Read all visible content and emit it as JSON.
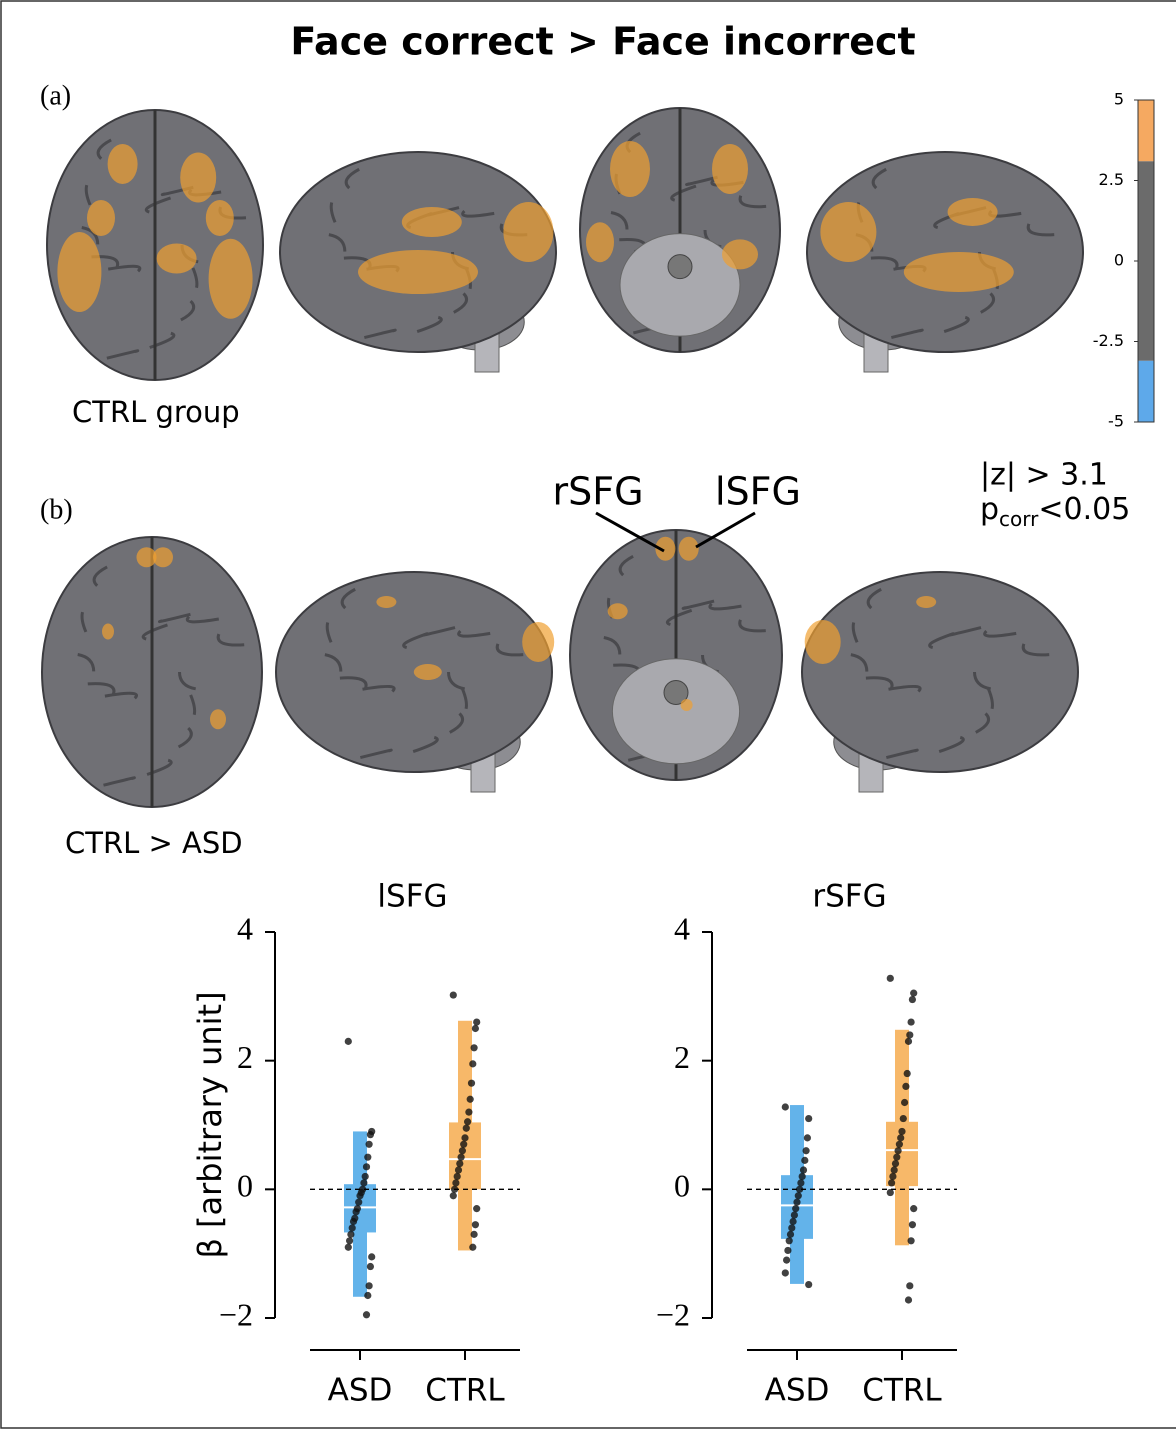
{
  "title": "Face correct > Face incorrect",
  "panel_a": {
    "label": "(a)",
    "caption": "CTRL group"
  },
  "panel_b": {
    "label": "(b)",
    "caption": "CTRL > ASD",
    "annotations": [
      "rSFG",
      "lSFG"
    ]
  },
  "colorbar": {
    "lim": [
      -5,
      5
    ],
    "ticks": [
      5,
      2.5,
      0,
      -2.5,
      -5
    ],
    "threshold": 3.1,
    "pos_color": "#f5a961",
    "neg_color": "#5ea9ea",
    "mid_color": "#6b6b6b"
  },
  "threshold_z": "|z| > 3.1",
  "threshold_p": {
    "base": "p",
    "sub": "corr",
    "rest": "<0.05"
  },
  "chart_data": [
    {
      "type": "box",
      "title": "lSFG",
      "ylabel": "β [arbitrary unit]",
      "categories": [
        "ASD",
        "CTRL"
      ],
      "colors": [
        "#63b3ea",
        "#f7b869"
      ],
      "ylim": [
        -2,
        4
      ],
      "yticks": [
        4,
        2,
        0,
        {
          "value": -2,
          "label": "−2"
        }
      ],
      "hline": 0,
      "boxes": [
        {
          "q1": -0.67,
          "median": -0.28,
          "q3": 0.08,
          "whisker_low": -1.67,
          "whisker_high": 0.9,
          "points": [
            2.3,
            0.9,
            0.85,
            0.7,
            0.5,
            0.35,
            0.2,
            0.1,
            0.0,
            -0.05,
            -0.1,
            -0.2,
            -0.3,
            -0.35,
            -0.45,
            -0.5,
            -0.6,
            -0.7,
            -0.8,
            -0.9,
            -1.05,
            -1.2,
            -1.5,
            -1.65,
            -1.95
          ]
        },
        {
          "q1": 0.0,
          "median": 0.47,
          "q3": 1.04,
          "whisker_low": -0.95,
          "whisker_high": 2.62,
          "points": [
            3.02,
            2.6,
            2.5,
            2.2,
            1.95,
            1.65,
            1.4,
            1.2,
            1.05,
            0.95,
            0.8,
            0.7,
            0.6,
            0.5,
            0.4,
            0.3,
            0.2,
            0.1,
            0.0,
            -0.1,
            -0.3,
            -0.55,
            -0.7,
            -0.9
          ]
        }
      ]
    },
    {
      "type": "box",
      "title": "rSFG",
      "categories": [
        "ASD",
        "CTRL"
      ],
      "colors": [
        "#63b3ea",
        "#f7b869"
      ],
      "ylim": [
        -2,
        4
      ],
      "yticks": [
        4,
        2,
        0,
        {
          "value": -2,
          "label": "−2"
        }
      ],
      "hline": 0,
      "boxes": [
        {
          "q1": -0.77,
          "median": -0.25,
          "q3": 0.22,
          "whisker_low": -1.47,
          "whisker_high": 1.31,
          "points": [
            1.28,
            1.1,
            0.8,
            0.6,
            0.45,
            0.3,
            0.2,
            0.1,
            0.0,
            -0.1,
            -0.2,
            -0.3,
            -0.4,
            -0.5,
            -0.6,
            -0.7,
            -0.8,
            -0.95,
            -1.1,
            -1.3,
            -1.48
          ]
        },
        {
          "q1": 0.05,
          "median": 0.61,
          "q3": 1.05,
          "whisker_low": -0.87,
          "whisker_high": 2.48,
          "points": [
            3.28,
            3.05,
            2.95,
            2.6,
            2.4,
            2.3,
            1.8,
            1.6,
            1.35,
            1.1,
            0.9,
            0.8,
            0.7,
            0.6,
            0.5,
            0.4,
            0.3,
            0.2,
            0.1,
            -0.05,
            -0.3,
            -0.55,
            -0.8,
            -1.5,
            -1.72
          ]
        }
      ]
    }
  ]
}
